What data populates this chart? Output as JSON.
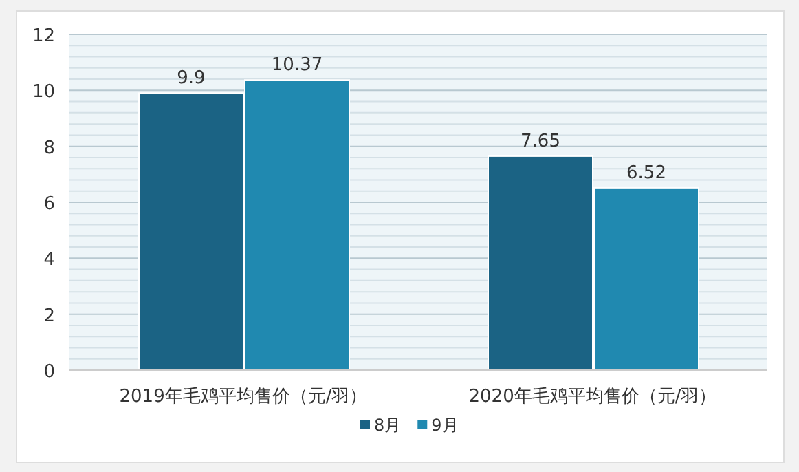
{
  "chart_data": {
    "type": "bar",
    "categories": [
      "2019年毛鸡平均售价（元/羽）",
      "2020年毛鸡平均售价（元/羽）"
    ],
    "series": [
      {
        "name": "8月",
        "color": "#1b6384",
        "values": [
          9.9,
          7.65
        ]
      },
      {
        "name": "9月",
        "color": "#2089b0",
        "values": [
          10.37,
          6.52
        ]
      }
    ],
    "ylim": [
      0,
      12
    ],
    "yticks": [
      0,
      2,
      4,
      6,
      8,
      10,
      12
    ],
    "grid": "y",
    "legend": "bottom",
    "data_labels": true
  }
}
